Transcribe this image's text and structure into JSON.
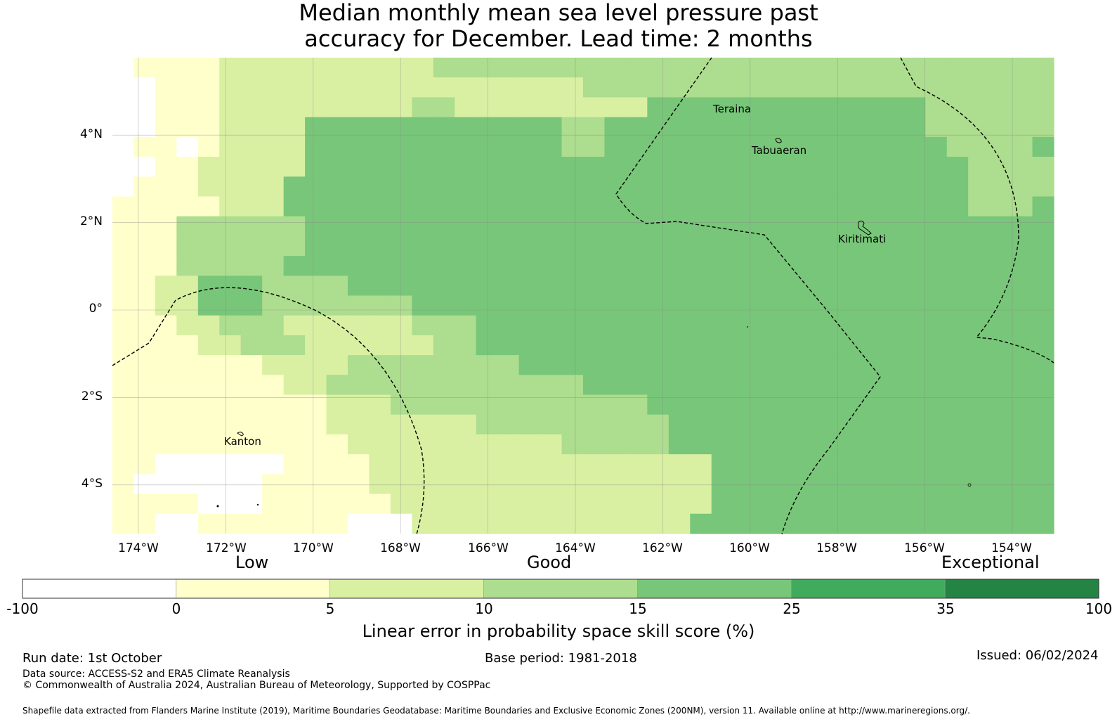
{
  "title": {
    "line1": "Median monthly mean sea level pressure past",
    "line2": "accuracy for December. Lead time: 2 months"
  },
  "map": {
    "latitude_labels": [
      "4°N",
      "2°N",
      "0°",
      "2°S",
      "4°S"
    ],
    "longitude_labels": [
      "174°W",
      "172°W",
      "170°W",
      "168°W",
      "166°W",
      "164°W",
      "162°W",
      "160°W",
      "158°W",
      "156°W",
      "154°W"
    ],
    "place_labels": [
      "Teraina",
      "Tabuaeran",
      "Kiritimati",
      "Kanton"
    ]
  },
  "colorbar": {
    "categories": [
      "Low",
      "Good",
      "Exceptional"
    ],
    "ticks": [
      "-100",
      "0",
      "5",
      "10",
      "15",
      "25",
      "35",
      "100"
    ],
    "colors": [
      "#ffffff",
      "#ffffcc",
      "#d9f0a3",
      "#addd8e",
      "#78c679",
      "#41ab5d",
      "#238443"
    ],
    "title": "Linear error in probability space skill score (%)"
  },
  "footer": {
    "run_date": "Run date: 1st October",
    "base_period": "Base period: 1981-2018",
    "issued": "Issued: 06/02/2024",
    "data_source": "Data source: ACCESS-S2 and ERA5 Climate Reanalysis",
    "copyright": "© Commonwealth of Australia 2024, Australian Bureau of Meteorology, Supported by COSPPac",
    "shapefile": "Shapefile data extracted from Flanders Marine Institute (2019), Maritime Boundaries Geodatabase: Maritime Boundaries and Exclusive Economic Zones (200NM), version 11. Available online at http://www.marineregions.org/."
  }
}
